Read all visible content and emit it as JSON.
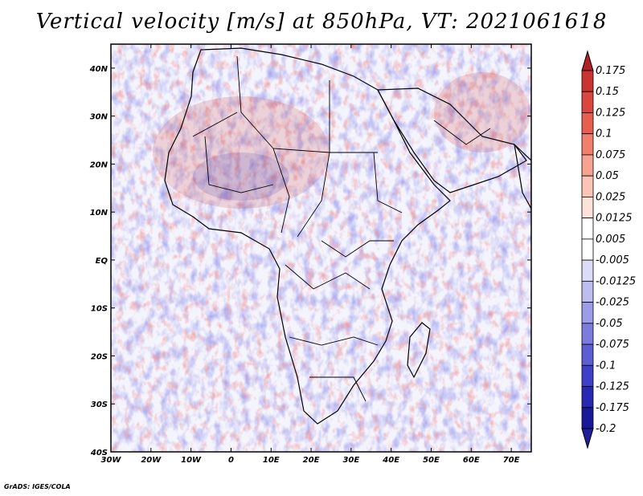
{
  "title": "Vertical velocity [m/s] at 850hPa, VT: 2021061618",
  "credit": "GrADS: IGES/COLA",
  "map": {
    "lon_range": [
      -30,
      75
    ],
    "lat_range": [
      -40,
      45
    ],
    "lon_ticks": [
      "30W",
      "20W",
      "10W",
      "0",
      "10E",
      "20E",
      "30E",
      "40E",
      "50E",
      "60E",
      "70E"
    ],
    "lat_ticks": [
      "40N",
      "30N",
      "20N",
      "10N",
      "EQ",
      "10S",
      "20S",
      "30S",
      "40S"
    ]
  },
  "colorbar": {
    "labels": [
      "0.175",
      "0.15",
      "0.125",
      "0.1",
      "0.075",
      "0.05",
      "0.025",
      "0.0125",
      "0.005",
      "-0.005",
      "-0.0125",
      "-0.025",
      "-0.05",
      "-0.075",
      "-0.1",
      "-0.125",
      "-0.175",
      "-0.2"
    ],
    "colors": [
      "#b02228",
      "#c83533",
      "#d9473f",
      "#e7604f",
      "#f07f6b",
      "#f7a392",
      "#fbc4b6",
      "#fde2d9",
      "#ffffff",
      "#ffffff",
      "#dcdcf6",
      "#bdbdf0",
      "#9c9ce8",
      "#7c7cde",
      "#5d5dd4",
      "#4040c6",
      "#2828b0",
      "#181898",
      "#20209a"
    ]
  }
}
